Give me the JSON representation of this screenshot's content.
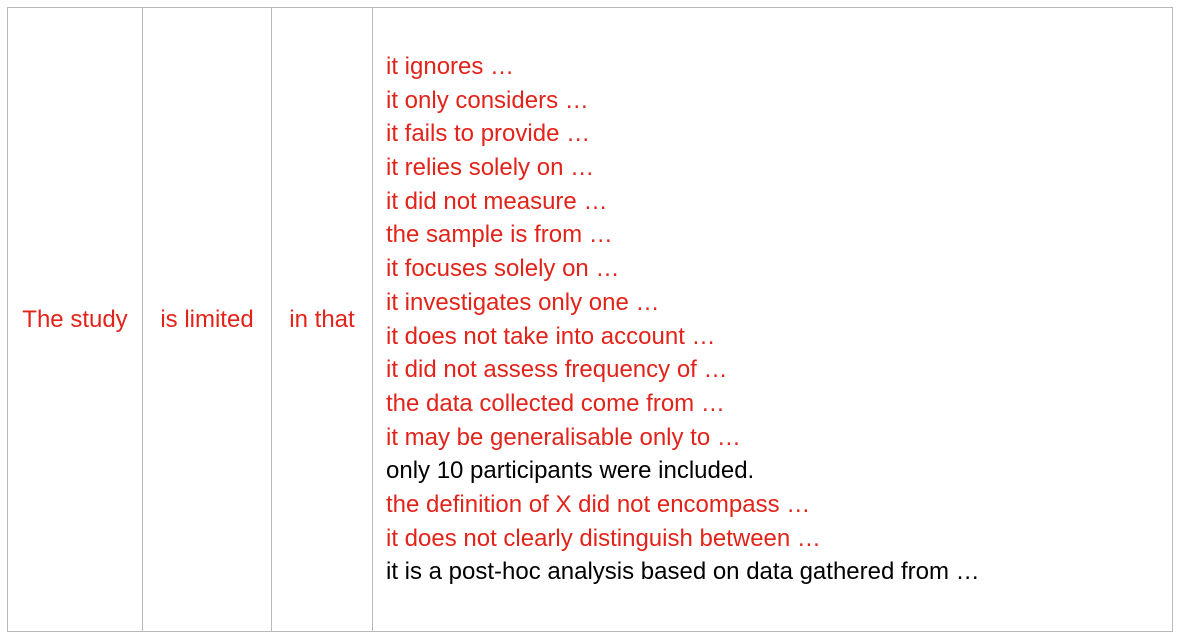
{
  "table": {
    "subject": "The study",
    "verb": "is limited",
    "link": "in that",
    "completions": [
      {
        "text": "it ignores …",
        "color": "#e2231a"
      },
      {
        "text": "it only considers …",
        "color": "#e2231a"
      },
      {
        "text": "it fails to provide …",
        "color": "#e2231a"
      },
      {
        "text": "it relies solely on …",
        "color": "#e2231a"
      },
      {
        "text": "it did not measure …",
        "color": "#e2231a"
      },
      {
        "text": "the sample is from …",
        "color": "#e2231a"
      },
      {
        "text": "it focuses solely on …",
        "color": "#e2231a"
      },
      {
        "text": "it investigates only one …",
        "color": "#e2231a"
      },
      {
        "text": "it does not take into account …",
        "color": "#e2231a"
      },
      {
        "text": "it did not assess frequency of …",
        "color": "#e2231a"
      },
      {
        "text": "the data collected come from …",
        "color": "#e2231a"
      },
      {
        "text": "it may be generalisable only to …",
        "color": "#e2231a"
      },
      {
        "text": "only 10 participants were included.",
        "color": "#000000"
      },
      {
        "text": "the definition of X did not encompass …",
        "color": "#e2231a"
      },
      {
        "text": "it does not clearly distinguish between …",
        "color": "#e2231a"
      },
      {
        "text": "it is a post-hoc analysis based on data gathered from …",
        "color": "#000000"
      }
    ]
  }
}
